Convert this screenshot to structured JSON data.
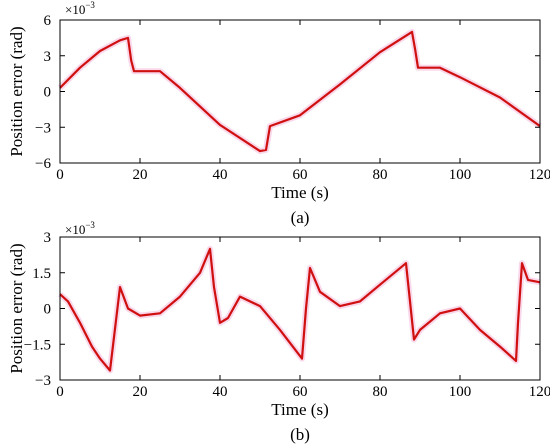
{
  "chart_data": [
    {
      "type": "line",
      "caption": "(a)",
      "xlabel": "Time (s)",
      "ylabel": "Position error (rad)",
      "y_multiplier": {
        "base": "×10",
        "exponent": "−3"
      },
      "xlim": [
        0,
        120
      ],
      "ylim": [
        -6,
        6
      ],
      "xticks": [
        0,
        20,
        40,
        60,
        80,
        100,
        120
      ],
      "yticks": [
        -6,
        -3,
        0,
        3,
        6
      ],
      "ytick_labels": [
        "−6",
        "−3",
        "0",
        "3",
        "6"
      ],
      "grid": false,
      "line_color": "#d01010",
      "x": [
        0,
        5,
        10,
        15,
        17,
        17.8,
        18.5,
        25,
        30,
        40,
        50,
        51.5,
        52.5,
        60,
        70,
        80,
        88,
        88.8,
        89.5,
        95,
        100,
        110,
        120
      ],
      "y": [
        0.3,
        2.0,
        3.4,
        4.3,
        4.5,
        2.6,
        1.7,
        1.7,
        0.3,
        -2.8,
        -5.0,
        -4.9,
        -2.9,
        -2.0,
        0.6,
        3.3,
        5.0,
        3.5,
        2.0,
        2.0,
        1.2,
        -0.5,
        -2.9
      ]
    },
    {
      "type": "line",
      "caption": "(b)",
      "xlabel": "Time (s)",
      "ylabel": "Position error (rad)",
      "y_multiplier": {
        "base": "×10",
        "exponent": "−3"
      },
      "xlim": [
        0,
        120
      ],
      "ylim": [
        -3,
        3
      ],
      "xticks": [
        0,
        20,
        40,
        60,
        80,
        100,
        120
      ],
      "yticks": [
        -3,
        -1.5,
        0,
        1.5,
        3
      ],
      "ytick_labels": [
        "−3",
        "−1.5",
        "0",
        "1.5",
        "3"
      ],
      "grid": false,
      "line_color": "#d01010",
      "x": [
        0,
        2,
        5,
        8,
        10,
        12.5,
        13.5,
        15,
        17,
        20,
        25,
        30,
        35,
        37.5,
        38.5,
        40,
        42,
        45,
        50,
        55,
        60.5,
        61.5,
        62.5,
        65,
        70,
        75,
        80,
        86.5,
        87.5,
        88.5,
        90,
        95,
        100,
        105,
        110,
        114,
        114.5,
        115.5,
        117,
        120
      ],
      "y": [
        0.6,
        0.3,
        -0.6,
        -1.6,
        -2.1,
        -2.6,
        -1.2,
        0.9,
        0.0,
        -0.3,
        -0.2,
        0.5,
        1.5,
        2.5,
        0.9,
        -0.6,
        -0.4,
        0.5,
        0.1,
        -0.9,
        -2.1,
        0.0,
        1.7,
        0.7,
        0.1,
        0.3,
        1.0,
        1.9,
        0.3,
        -1.3,
        -0.9,
        -0.2,
        0.0,
        -0.9,
        -1.6,
        -2.2,
        -0.6,
        1.9,
        1.2,
        1.1
      ]
    }
  ]
}
